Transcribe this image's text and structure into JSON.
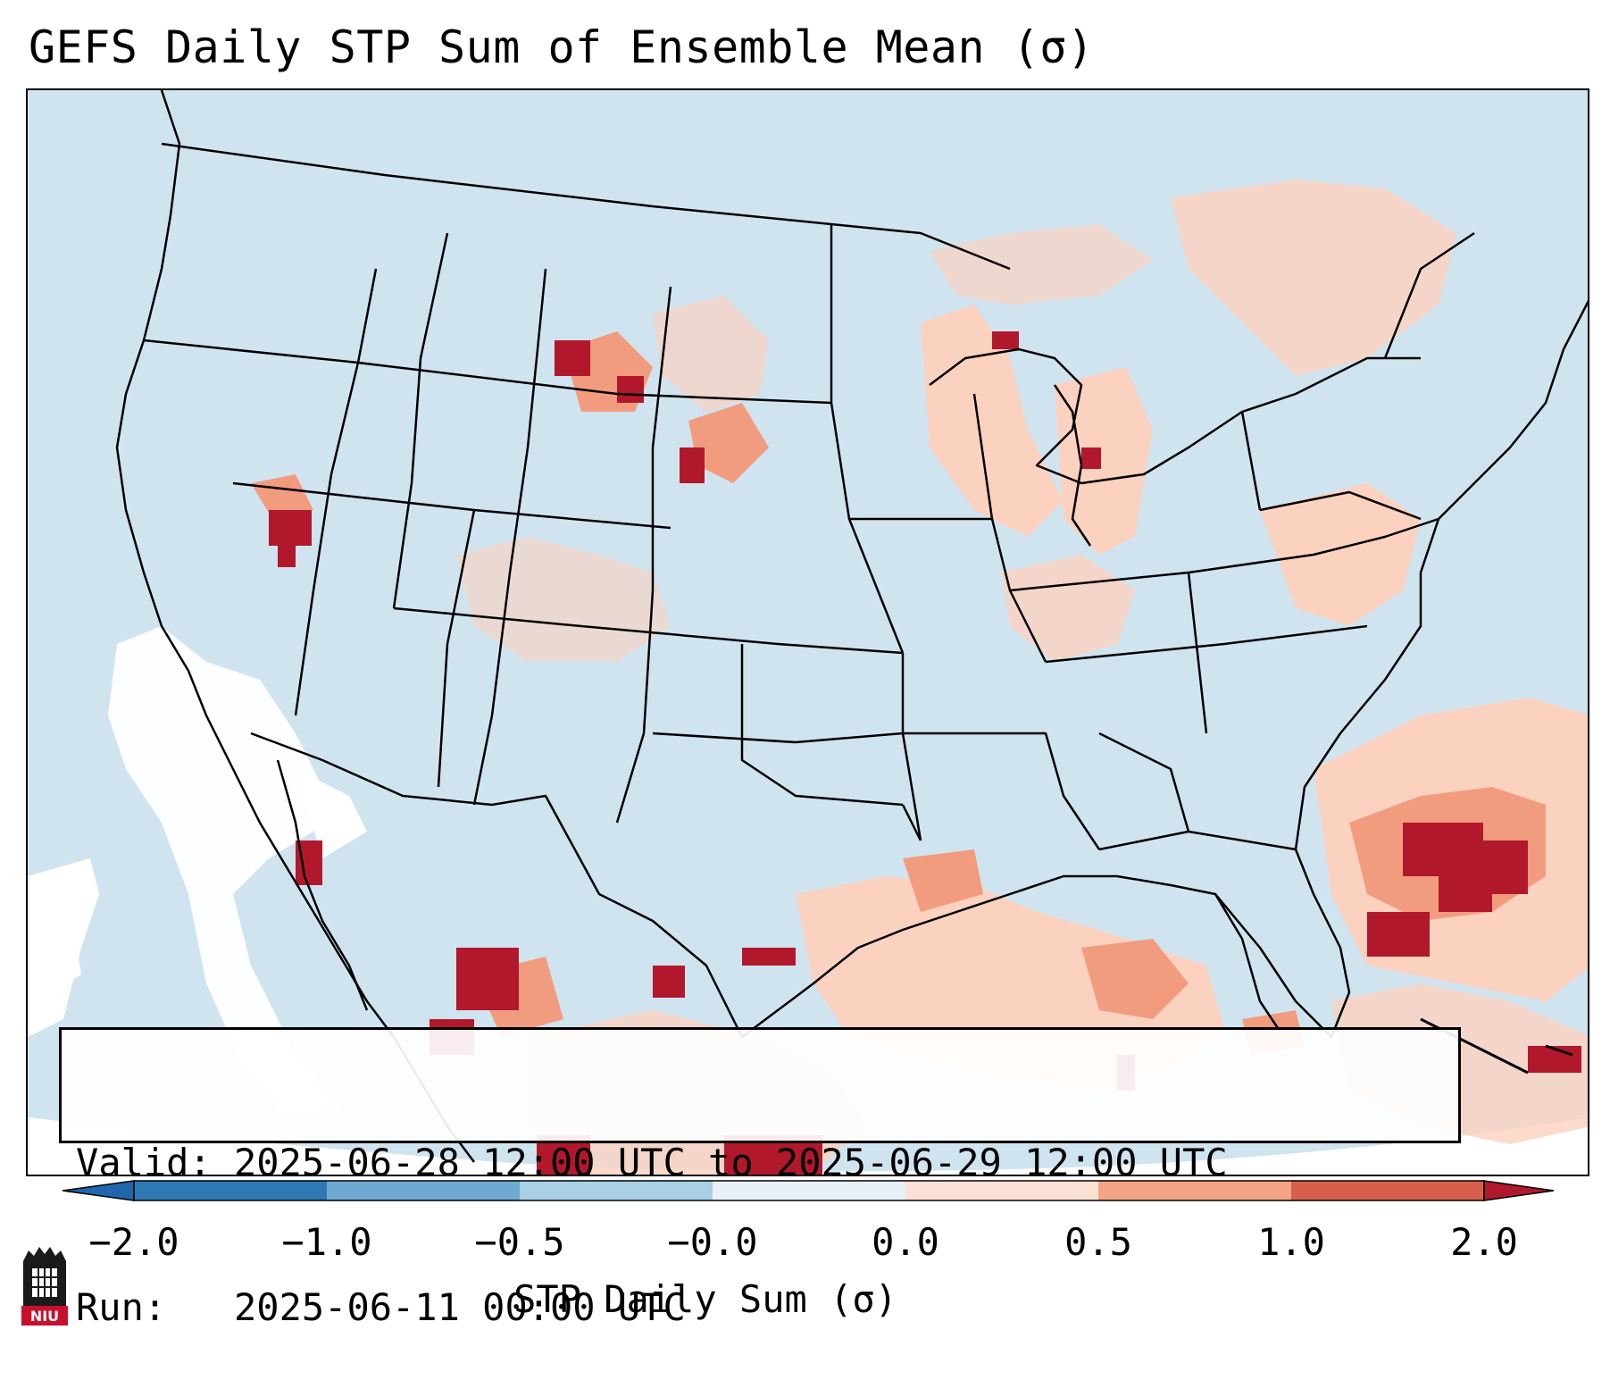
{
  "title": "GEFS Daily STP Sum of Ensemble Mean (σ)",
  "valid_label": "Valid:",
  "valid_start": "2025-06-28 12:00 UTC",
  "valid_to": "to",
  "valid_end": "2025-06-29 12:00 UTC",
  "run_label": "Run:",
  "run_time": "2025-06-11 00:00 UTC",
  "colorbar": {
    "label": "STP Daily Sum (σ)",
    "ticks": [
      "−2.0",
      "−1.0",
      "−0.5",
      "−0.0",
      "0.0",
      "0.5",
      "1.0",
      "2.0"
    ],
    "colors": [
      "#2f79b5",
      "#6fa9d2",
      "#a9d0e5",
      "#e8f1f7",
      "#fbe1d4",
      "#f4a385",
      "#d6604d",
      "#b2182b"
    ],
    "under_color": "#2166ac",
    "over_color": "#b2182b"
  },
  "map": {
    "ocean_color": "#d0e4f0",
    "land_color": "#d0e4f0",
    "no_data_color": "#ffffff",
    "border_color": "#000000"
  },
  "logo": {
    "text": "NIU"
  }
}
